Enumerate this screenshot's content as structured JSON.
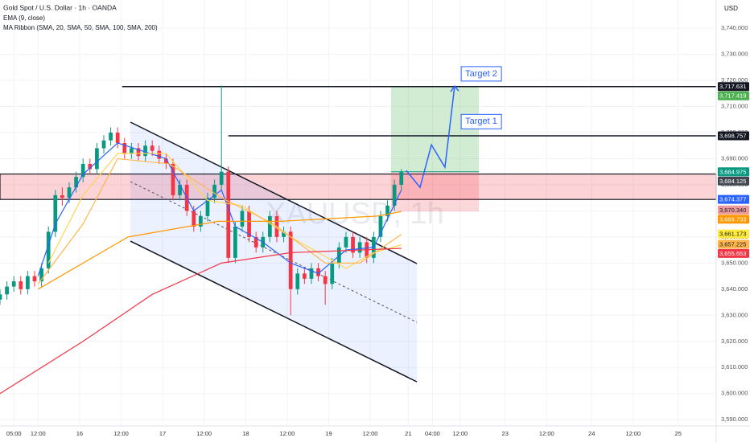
{
  "chart_data": {
    "type": "candlestick",
    "title": "Gold Spot / U.S. Dollar · 1h · OANDA",
    "indicators": [
      "EMA (9, close)",
      "MA Ribbon (SMA, 20, SMA, 50, SMA, 100, SMA, 200)"
    ],
    "currency": "USD",
    "watermark": "XAUUSD, 1h",
    "up_color": "#089981",
    "down_color": "#f23645",
    "x": [
      -4,
      -2,
      0,
      2,
      4,
      6,
      8,
      10,
      12,
      14,
      16,
      18,
      20,
      22,
      24,
      26,
      28,
      30,
      32,
      34,
      36,
      38,
      40,
      42,
      44,
      46,
      48,
      50,
      52,
      54,
      56,
      58,
      60,
      62,
      64,
      66,
      68,
      70,
      72,
      74,
      76,
      78,
      80,
      82,
      84,
      86,
      88,
      90,
      92,
      94,
      96,
      98,
      100,
      102,
      104,
      106,
      108,
      110,
      112
    ],
    "open": [
      3636,
      3638,
      3641,
      3643,
      3640,
      3645,
      3643,
      3648,
      3662,
      3676,
      3675,
      3679,
      3683,
      3688,
      3686,
      3694,
      3697,
      3700,
      3696,
      3692,
      3694,
      3691,
      3695,
      3693,
      3690,
      3688,
      3676,
      3680,
      3670,
      3664,
      3668,
      3675,
      3680,
      3685,
      3652,
      3664,
      3670,
      3660,
      3656,
      3660,
      3668,
      3660,
      3662,
      3640,
      3646,
      3644,
      3648,
      3645,
      3642,
      3650,
      3656,
      3660,
      3654,
      3658,
      3652,
      3660,
      3668,
      3672,
      3680
    ],
    "high": [
      3640,
      3643,
      3645,
      3645,
      3647,
      3647,
      3650,
      3664,
      3678,
      3679,
      3681,
      3685,
      3690,
      3690,
      3696,
      3699,
      3702,
      3702,
      3698,
      3696,
      3696,
      3697,
      3697,
      3695,
      3692,
      3690,
      3682,
      3682,
      3672,
      3670,
      3677,
      3682,
      3718,
      3687,
      3666,
      3672,
      3672,
      3662,
      3662,
      3670,
      3670,
      3664,
      3664,
      3648,
      3648,
      3650,
      3650,
      3647,
      3652,
      3658,
      3662,
      3662,
      3660,
      3660,
      3662,
      3670,
      3674,
      3682,
      3686
    ],
    "low": [
      3634,
      3636,
      3639,
      3638,
      3638,
      3641,
      3641,
      3646,
      3660,
      3672,
      3673,
      3677,
      3681,
      3684,
      3684,
      3692,
      3695,
      3694,
      3690,
      3690,
      3689,
      3689,
      3691,
      3688,
      3686,
      3674,
      3674,
      3668,
      3662,
      3662,
      3666,
      3673,
      3678,
      3650,
      3650,
      3662,
      3658,
      3654,
      3654,
      3658,
      3658,
      3658,
      3630,
      3638,
      3642,
      3642,
      3643,
      3634,
      3640,
      3648,
      3654,
      3652,
      3652,
      3650,
      3650,
      3658,
      3666,
      3670,
      3678
    ],
    "close": [
      3638,
      3641,
      3643,
      3640,
      3645,
      3643,
      3648,
      3662,
      3676,
      3675,
      3679,
      3683,
      3688,
      3686,
      3694,
      3697,
      3700,
      3696,
      3692,
      3694,
      3691,
      3695,
      3693,
      3690,
      3688,
      3676,
      3680,
      3670,
      3664,
      3668,
      3675,
      3680,
      3685,
      3652,
      3664,
      3670,
      3660,
      3656,
      3660,
      3668,
      3660,
      3662,
      3640,
      3646,
      3644,
      3648,
      3645,
      3642,
      3650,
      3656,
      3660,
      3654,
      3658,
      3652,
      3660,
      3668,
      3672,
      3680,
      3684.975
    ],
    "lines": [
      {
        "color": "#2962ff",
        "x": [
          7,
          12,
          20,
          30,
          44,
          52,
          60,
          64,
          72,
          80,
          88,
          96,
          104,
          112
        ],
        "values": [
          3645,
          3665,
          3684,
          3696,
          3690,
          3670,
          3678,
          3664,
          3658,
          3650,
          3646,
          3655,
          3656,
          3678
        ]
      },
      {
        "color": "#ffd54f",
        "x": [
          10,
          20,
          30,
          44,
          56,
          66,
          80,
          96,
          104,
          112
        ],
        "values": [
          3650,
          3676,
          3692,
          3692,
          3674,
          3672,
          3660,
          3648,
          3654,
          3657
        ]
      },
      {
        "color": "#ffb74d",
        "x": [
          7,
          20,
          30,
          45,
          60,
          75,
          90,
          100,
          112
        ],
        "values": [
          3642,
          3665,
          3690,
          3688,
          3675,
          3665,
          3650,
          3650,
          3661
        ]
      },
      {
        "color": "#ff9800",
        "x": [
          7,
          33,
          59,
          77,
          105,
          112
        ],
        "values": [
          3640,
          3660,
          3666,
          3666,
          3668,
          3669.733
        ]
      },
      {
        "color": "#f23645",
        "x": [
          -4,
          20,
          40,
          60,
          80,
          100,
          112
        ],
        "values": [
          3600,
          3620,
          3638,
          3650,
          3654,
          3655,
          3655.653
        ]
      }
    ],
    "drawings": {
      "zone": {
        "low": 3674.377,
        "high": 3684.125
      },
      "channel": {
        "x": [
          33.7,
          116.5
        ],
        "upper": [
          3704.0,
          3649.8
        ],
        "middle": [
          3681.2,
          3627.3
        ],
        "lower": [
          3658.4,
          3604.5
        ]
      },
      "target_box": {
        "x": [
          109,
          134.4
        ],
        "entry": 3684.975,
        "target": 3717.419,
        "stop": 3669.733
      },
      "hlines": [
        {
          "x": 31.3,
          "value": 3717.631
        },
        {
          "x": 62,
          "value": 3698.757
        }
      ],
      "arrow": {
        "x": [
          113.4,
          117.4,
          120.7,
          124.6,
          127.4
        ],
        "values": [
          3685.5,
          3679.0,
          3695.3,
          3686.7,
          3717.8
        ]
      }
    },
    "annotations": [
      {
        "text": "Target 2",
        "x": 130,
        "value": 3722.5
      },
      {
        "text": "Target 1",
        "x": 130,
        "value": 3704.2
      }
    ],
    "price_labels": [
      {
        "value": 3717.631,
        "label": "3,717.631",
        "color": "#131722",
        "text_color": "#ffffff"
      },
      {
        "value": 3717.419,
        "label": "3,717.419",
        "color": "#4caf50",
        "text_color": "#ffffff"
      },
      {
        "value": 3698.757,
        "label": "3,698.757",
        "color": "#131722",
        "text_color": "#ffffff"
      },
      {
        "value": 3684.975,
        "label": "3,684.975",
        "color": "#089981",
        "text_color": "#ffffff"
      },
      {
        "value": 3684.125,
        "label": "3,684.125",
        "color": "#434651",
        "text_color": "#ffffff"
      },
      {
        "value": 3674.377,
        "label": "3,674.377",
        "color": "#2962ff",
        "text_color": "#ffffff"
      },
      {
        "value": 3670.34,
        "label": "3,670.340",
        "color": "#ef9a9a",
        "text_color": "#131722"
      },
      {
        "value": 3669.733,
        "label": "3,669.733",
        "color": "#ff9800",
        "text_color": "#ffffff"
      },
      {
        "value": 3661.173,
        "label": "3,661.173",
        "color": "#ffeb3b",
        "text_color": "#131722"
      },
      {
        "value": 3657.225,
        "label": "3,657.225",
        "color": "#ffb74d",
        "text_color": "#131722"
      },
      {
        "value": 3655.653,
        "label": "3,655.653",
        "color": "#f23645",
        "text_color": "#ffffff"
      }
    ],
    "xlim": [
      -4,
      203
    ],
    "xticks": [
      {
        "value": 0,
        "label": "05:00"
      },
      {
        "value": 7,
        "label": "12:00"
      },
      {
        "value": 19,
        "label": "16"
      },
      {
        "value": 31,
        "label": "12:00"
      },
      {
        "value": 43,
        "label": "17"
      },
      {
        "value": 55,
        "label": "12:00"
      },
      {
        "value": 67,
        "label": "18"
      },
      {
        "value": 79,
        "label": "12:00"
      },
      {
        "value": 91,
        "label": "19"
      },
      {
        "value": 103,
        "label": "12:00"
      },
      {
        "value": 114,
        "label": "21"
      },
      {
        "value": 121,
        "label": "04:00"
      },
      {
        "value": 129,
        "label": "12:00"
      },
      {
        "value": 142,
        "label": "23"
      },
      {
        "value": 154,
        "label": "12:00"
      },
      {
        "value": 167,
        "label": "24"
      },
      {
        "value": 179,
        "label": "12:00"
      },
      {
        "value": 192,
        "label": "25"
      }
    ],
    "ylim": [
      3587.6,
      3750.8
    ],
    "yticks": [
      {
        "value": 3590,
        "label": "3,590.000"
      },
      {
        "value": 3600,
        "label": "3,600.000"
      },
      {
        "value": 3610,
        "label": "3,610.000"
      },
      {
        "value": 3620,
        "label": "3,620.000"
      },
      {
        "value": 3630,
        "label": "3,630.000"
      },
      {
        "value": 3640,
        "label": "3,640.000"
      },
      {
        "value": 3650,
        "label": "3,650.000"
      },
      {
        "value": 3660,
        "label": "3,660.000"
      },
      {
        "value": 3670,
        "label": "3,670.000"
      },
      {
        "value": 3680,
        "label": "3,680.000"
      },
      {
        "value": 3690,
        "label": "3,690.000"
      },
      {
        "value": 3700,
        "label": "3,700.000"
      },
      {
        "value": 3710,
        "label": "3,710.000"
      },
      {
        "value": 3720,
        "label": "3,720.000"
      },
      {
        "value": 3730,
        "label": "3,730.000"
      },
      {
        "value": 3740,
        "label": "3,740.000"
      }
    ]
  }
}
